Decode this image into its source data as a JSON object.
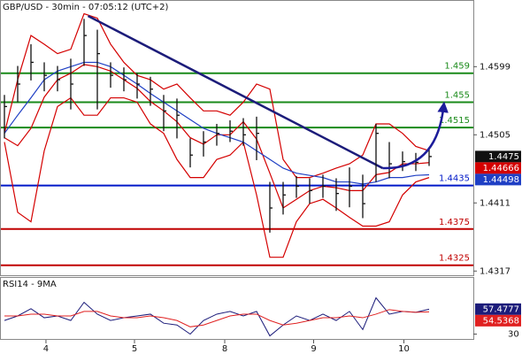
{
  "chart_data": {
    "type": "ohlc",
    "title": "GBP/USD - 30min - 07:05:12 (UTC+2)",
    "ylim": [
      1.431,
      1.4691
    ],
    "yticks": [
      1.4599,
      1.4505,
      1.4411,
      1.4317
    ],
    "xticks": [
      {
        "value": 3.13,
        "label": "4"
      },
      {
        "value": 9.8,
        "label": "5"
      },
      {
        "value": 16.6,
        "label": "8"
      },
      {
        "value": 23.3,
        "label": "9"
      },
      {
        "value": 30.1,
        "label": "10"
      }
    ],
    "bar_color": "#111111",
    "high": [
      1.456,
      1.46,
      1.463,
      1.4605,
      1.46,
      1.461,
      1.4665,
      1.465,
      1.4605,
      1.4598,
      1.459,
      1.4585,
      1.456,
      1.4555,
      1.45,
      1.451,
      1.452,
      1.4525,
      1.4528,
      1.453,
      1.444,
      1.444,
      1.4448,
      1.4445,
      1.445,
      1.4445,
      1.446,
      1.445,
      1.452,
      1.4495,
      1.4482,
      1.448,
      1.4485
    ],
    "low": [
      1.45,
      1.455,
      1.458,
      1.4565,
      1.4565,
      1.454,
      1.46,
      1.454,
      1.457,
      1.4565,
      1.4555,
      1.4545,
      1.451,
      1.45,
      1.446,
      1.4475,
      1.449,
      1.4495,
      1.449,
      1.447,
      1.437,
      1.4395,
      1.4418,
      1.441,
      1.4418,
      1.44,
      1.4405,
      1.439,
      1.444,
      1.4445,
      1.4455,
      1.4455,
      1.4462
    ],
    "close": [
      1.4544,
      1.4575,
      1.4605,
      1.4587,
      1.4581,
      1.4575,
      1.4642,
      1.4617,
      1.4587,
      1.4581,
      1.4575,
      1.4568,
      1.4538,
      1.4532,
      1.4477,
      1.4495,
      1.4507,
      1.451,
      1.4505,
      1.4507,
      1.4404,
      1.4422,
      1.4434,
      1.4428,
      1.4434,
      1.4424,
      1.4434,
      1.441,
      1.4507,
      1.4465,
      1.4468,
      1.4467,
      1.4475
    ],
    "series": [
      {
        "color": "#d40000",
        "values": [
          1.4507,
          1.4581,
          1.4642,
          1.463,
          1.4617,
          1.4623,
          1.4672,
          1.4666,
          1.463,
          1.4605,
          1.4587,
          1.4581,
          1.4568,
          1.4575,
          1.4556,
          1.4538,
          1.4538,
          1.4532,
          1.455,
          1.4575,
          1.4568,
          1.4471,
          1.4446,
          1.4446,
          1.4452,
          1.4459,
          1.4465,
          1.4477,
          1.452,
          1.452,
          1.4507,
          1.4489,
          1.4483
        ]
      },
      {
        "color": "#d40000",
        "values": [
          1.4495,
          1.4398,
          1.4385,
          1.4483,
          1.4544,
          1.4556,
          1.4532,
          1.4532,
          1.4556,
          1.4556,
          1.455,
          1.452,
          1.4507,
          1.4471,
          1.4446,
          1.4446,
          1.4471,
          1.4477,
          1.4495,
          1.4422,
          1.4336,
          1.4336,
          1.4385,
          1.441,
          1.4416,
          1.4404,
          1.4391,
          1.4379,
          1.4379,
          1.4385,
          1.4422,
          1.444,
          1.4446
        ]
      },
      {
        "color": "#d40000",
        "values": [
          1.4501,
          1.449,
          1.4514,
          1.4557,
          1.4581,
          1.459,
          1.4602,
          1.4599,
          1.4593,
          1.4581,
          1.4569,
          1.4551,
          1.4538,
          1.4523,
          1.4501,
          1.4492,
          1.4505,
          1.4505,
          1.4523,
          1.4499,
          1.4452,
          1.4404,
          1.4416,
          1.4428,
          1.4434,
          1.4432,
          1.4428,
          1.4428,
          1.445,
          1.4453,
          1.4465,
          1.4465,
          1.44666
        ]
      },
      {
        "color": "#1f3fc4",
        "values": [
          1.4507,
          1.4532,
          1.4556,
          1.4581,
          1.4593,
          1.4599,
          1.4605,
          1.4605,
          1.4599,
          1.4587,
          1.4575,
          1.4562,
          1.455,
          1.4538,
          1.4526,
          1.4514,
          1.4507,
          1.4501,
          1.4495,
          1.4483,
          1.4471,
          1.4459,
          1.4452,
          1.4449,
          1.4446,
          1.444,
          1.444,
          1.4437,
          1.444,
          1.4446,
          1.4446,
          1.4449,
          1.44498
        ]
      }
    ],
    "levels": [
      {
        "value": 1.459,
        "color": "#1a8a1a"
      },
      {
        "value": 1.455,
        "color": "#1a8a1a"
      },
      {
        "value": 1.4515,
        "color": "#1a8a1a"
      },
      {
        "value": 1.4435,
        "color": "#0018c8"
      },
      {
        "value": 1.4375,
        "color": "#c00000"
      },
      {
        "value": 1.4325,
        "color": "#c00000"
      }
    ],
    "trendline": {
      "x": [
        6.3,
        28.5
      ],
      "y": [
        1.4669,
        1.4459
      ],
      "color": "#1c1c7a"
    },
    "arrow": {
      "x": [
        28.5,
        33.1
      ],
      "y": [
        1.4459,
        1.4545
      ],
      "color": "#1c1c9a"
    },
    "rsi": {
      "title": "RSI14 - 9MA",
      "ylim": [
        10,
        90
      ],
      "yticks": [
        30
      ],
      "series": [
        {
          "color": "#1c1c7a",
          "values": [
            45,
            50,
            58,
            48,
            50,
            45,
            65,
            52,
            45,
            48,
            50,
            52,
            42,
            40,
            30,
            45,
            52,
            55,
            50,
            55,
            28,
            40,
            50,
            45,
            52,
            45,
            55,
            35,
            70,
            52,
            55,
            54,
            57.4777
          ]
        },
        {
          "color": "#e02020",
          "values": [
            50,
            50,
            52,
            52,
            50,
            50,
            55,
            55,
            50,
            48,
            48,
            50,
            48,
            45,
            38,
            40,
            45,
            50,
            52,
            52,
            45,
            40,
            42,
            45,
            48,
            48,
            50,
            48,
            52,
            57,
            55,
            54,
            54.5368
          ]
        }
      ]
    }
  }
}
